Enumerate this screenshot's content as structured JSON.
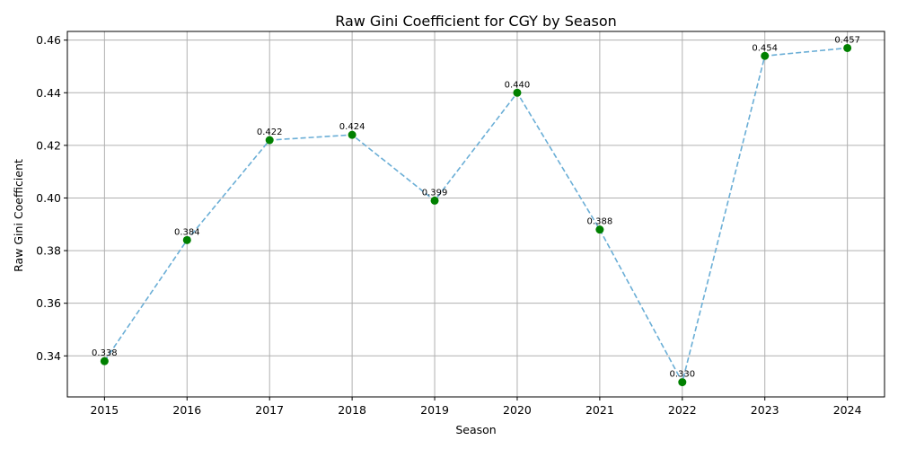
{
  "chart_data": {
    "type": "line",
    "title": "Raw Gini Coefficient for CGY by Season",
    "xlabel": "Season",
    "ylabel": "Raw Gini Coefficient",
    "x": [
      2015,
      2016,
      2017,
      2018,
      2019,
      2020,
      2021,
      2022,
      2023,
      2024
    ],
    "series": [
      {
        "values": [
          0.338,
          0.384,
          0.422,
          0.424,
          0.399,
          0.44,
          0.388,
          0.33,
          0.454,
          0.457
        ],
        "data_labels": [
          "0.338",
          "0.384",
          "0.422",
          "0.424",
          "0.399",
          "0.440",
          "0.388",
          "0.330",
          "0.454",
          "0.457"
        ],
        "line_color": "#6aaed6",
        "line_style": "dashed",
        "marker_color": "#008000"
      }
    ],
    "xlim": [
      2014.55,
      2024.45
    ],
    "ylim": [
      0.3244,
      0.4633
    ],
    "xticks": [
      "2015",
      "2016",
      "2017",
      "2018",
      "2019",
      "2020",
      "2021",
      "2022",
      "2023",
      "2024"
    ],
    "yticks": [
      "0.34",
      "0.36",
      "0.38",
      "0.40",
      "0.42",
      "0.44",
      "0.46"
    ],
    "grid": true,
    "legend": false
  }
}
